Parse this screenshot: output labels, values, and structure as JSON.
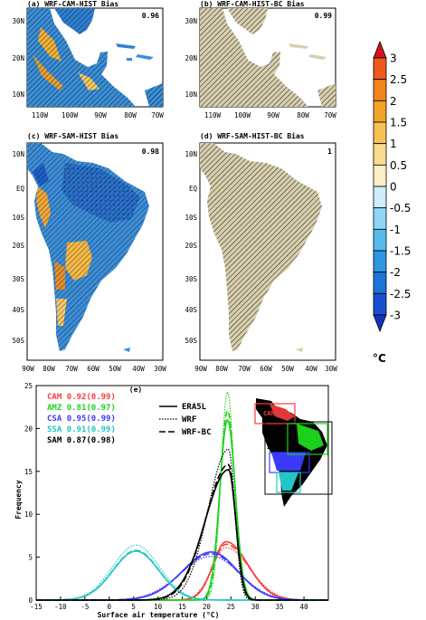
{
  "maps": [
    {
      "title": "(a) WRF-CAM-HIST Bias",
      "corr": "0.96",
      "yticks": [
        "30N",
        "20N",
        "10N"
      ],
      "xticks": [
        "110W",
        "100W",
        "90W",
        "80W",
        "70W"
      ]
    },
    {
      "title": "(b) WRF-CAM-HIST-BC Bias",
      "corr": "0.99",
      "yticks": [
        "30N",
        "20N",
        "10N"
      ],
      "xticks": [
        "110W",
        "100W",
        "90W",
        "80W",
        "70W"
      ]
    },
    {
      "title": "(c) WRF-SAM-HIST Bias",
      "corr": "0.98",
      "yticks": [
        "10N",
        "EQ",
        "10S",
        "20S",
        "30S",
        "40S",
        "50S"
      ],
      "xticks": [
        "90W",
        "80W",
        "70W",
        "60W",
        "50W",
        "40W",
        "30W"
      ]
    },
    {
      "title": "(d) WRF-SAM-HIST-BC Bias",
      "corr": "1",
      "yticks": [
        "10N",
        "EQ",
        "10S",
        "20S",
        "30S",
        "40S",
        "50S"
      ],
      "xticks": [
        "90W",
        "80W",
        "70W",
        "60W",
        "50W",
        "40W",
        "30W"
      ]
    }
  ],
  "colorbar": {
    "unit": "°C",
    "labels": [
      "3",
      "2.5",
      "2",
      "1.5",
      "1",
      "0.5",
      "0",
      "-0.5",
      "-1",
      "-1.5",
      "-2",
      "-2.5",
      "-3"
    ],
    "colors": [
      "#d4141a",
      "#ee5a1a",
      "#f2851c",
      "#f3a328",
      "#f6c253",
      "#f9dc8e",
      "#fbf0c8",
      "#cdeefc",
      "#8ed6f6",
      "#55bbef",
      "#2f97e2",
      "#1c74d6",
      "#1a4fd0",
      "#1633bf"
    ]
  },
  "chart_data": {
    "type": "line",
    "title": "(e)",
    "xlabel": "Surface air temperature (°C)",
    "ylabel": "Frequency",
    "xlim": [
      -15,
      45
    ],
    "ylim": [
      0,
      25
    ],
    "xticks": [
      "-15",
      "-10",
      "-5",
      "0",
      "5",
      "10",
      "15",
      "20",
      "25",
      "30",
      "35",
      "40"
    ],
    "yticks": [
      "0",
      "5",
      "10",
      "15",
      "20",
      "25"
    ],
    "style_legend": [
      "ERA5L",
      "WRF",
      "WRF-BC"
    ],
    "series": [
      {
        "name": "CAM",
        "label": "CAM",
        "r": "0.92",
        "r_bc": "(0.99)",
        "color": "#ff3b3b",
        "peak_x": 24,
        "peak": [
          6.8,
          6.1,
          6.5
        ],
        "sigma": [
          4.5,
          4.9,
          4.6
        ],
        "skew": 0.6
      },
      {
        "name": "AMZ",
        "label": "AMZ",
        "r": "0.81",
        "r_bc": "(0.97)",
        "color": "#1ed21e",
        "peak_x": 24.3,
        "peak": [
          21.0,
          24.3,
          22.1
        ],
        "sigma": [
          1.6,
          1.35,
          1.5
        ],
        "skew": 1.0
      },
      {
        "name": "CSA",
        "label": "CSA",
        "r": "0.95",
        "r_bc": "(0.99)",
        "color": "#3a3aff",
        "peak_x": 21,
        "peak": [
          5.6,
          5.1,
          5.4
        ],
        "sigma": [
          5.4,
          5.8,
          5.5
        ],
        "skew": 1.1
      },
      {
        "name": "SSA",
        "label": "SSA",
        "r": "0.91",
        "r_bc": "(0.99)",
        "color": "#22c6c6",
        "peak_x": 5.5,
        "peak": [
          5.7,
          6.4,
          5.8
        ],
        "sigma": [
          4.7,
          4.8,
          4.7
        ],
        "skew": 1.0
      },
      {
        "name": "SAM",
        "label": "SAM",
        "r": "0.87",
        "r_bc": "(0.98)",
        "color": "#000000",
        "peak_x": 24.5,
        "peak": [
          15.2,
          17.6,
          15.8
        ],
        "sigma": [
          1.5,
          1.3,
          1.45
        ],
        "skew": 3.2
      }
    ]
  },
  "inset": {
    "labels": [
      "CAM",
      "AMZ",
      "SAM",
      "CSA",
      "SSA"
    ]
  }
}
